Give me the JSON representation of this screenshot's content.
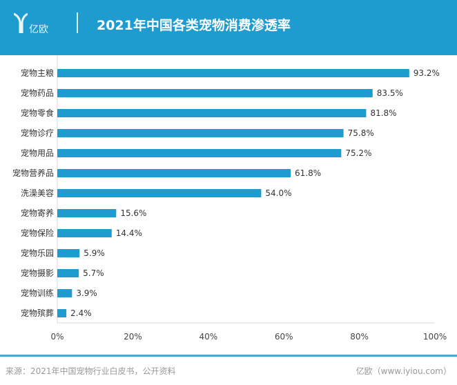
{
  "header": {
    "logo_text": "亿欧",
    "title": "2021年中国各类宠物消费渗透率"
  },
  "chart_data": {
    "type": "bar",
    "orientation": "horizontal",
    "categories": [
      "宠物主粮",
      "宠物药品",
      "宠物零食",
      "宠物诊疗",
      "宠物用品",
      "宠物营养品",
      "洗澡美容",
      "宠物寄养",
      "宠物保险",
      "宠物乐园",
      "宠物摄影",
      "宠物训练",
      "宠物殡葬"
    ],
    "values": [
      93.2,
      83.5,
      81.8,
      75.8,
      75.2,
      61.8,
      54.0,
      15.6,
      14.4,
      5.9,
      5.7,
      3.9,
      2.4
    ],
    "data_labels": [
      "93.2%",
      "83.5%",
      "81.8%",
      "75.8%",
      "75.2%",
      "61.8%",
      "54.0%",
      "15.6%",
      "14.4%",
      "5.9%",
      "5.7%",
      "3.9%",
      "2.4%"
    ],
    "xlim": [
      0,
      100
    ],
    "x_ticks": [
      "0%",
      "20%",
      "40%",
      "60%",
      "80%",
      "100%"
    ],
    "bar_color": "#1f9ccf",
    "grid": false
  },
  "footer": {
    "source": "来源：2021年中国宠物行业白皮书，公开资料",
    "credit": "亿欧（www.iyiou.com）"
  }
}
